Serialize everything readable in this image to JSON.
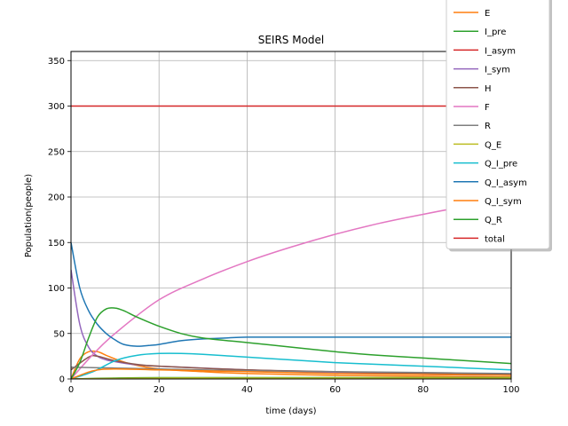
{
  "chart_data": {
    "type": "line",
    "title": "SEIRS Model",
    "xlabel": "time (days)",
    "ylabel": "Population(people)",
    "xlim": [
      0,
      100
    ],
    "ylim": [
      0,
      360
    ],
    "xticks": [
      "0",
      "20",
      "40",
      "60",
      "80",
      "100"
    ],
    "yticks": [
      "0",
      "50",
      "100",
      "150",
      "200",
      "250",
      "300",
      "350"
    ],
    "grid": true,
    "legend_position": "upper-right",
    "series": [
      {
        "name": "E",
        "color": "#ff7f0e",
        "x": [
          0,
          2,
          4,
          6,
          8,
          10,
          14,
          20,
          30,
          40,
          60,
          80,
          100
        ],
        "y": [
          0,
          22,
          30,
          30,
          26,
          22,
          16,
          11,
          8,
          6,
          4,
          3,
          2
        ]
      },
      {
        "name": "I_pre",
        "color": "#2ca02c",
        "x": [
          0,
          10,
          20,
          40,
          60,
          80,
          100
        ],
        "y": [
          0,
          1,
          1.5,
          1.5,
          1.5,
          1.5,
          1.5
        ]
      },
      {
        "name": "I_asym",
        "color": "#d62728",
        "x": [
          0,
          100
        ],
        "y": [
          0,
          0
        ]
      },
      {
        "name": "I_sym",
        "color": "#9467bd",
        "x": [
          0,
          2,
          4,
          6,
          8,
          10,
          14,
          20,
          30,
          40,
          60,
          80,
          100
        ],
        "y": [
          120,
          60,
          35,
          25,
          21,
          19,
          16,
          14,
          12,
          10,
          7,
          5,
          4
        ]
      },
      {
        "name": "H",
        "color": "#8c564b",
        "x": [
          0,
          4,
          6,
          10,
          15,
          20,
          40,
          60,
          80,
          100
        ],
        "y": [
          10,
          24,
          25,
          20,
          16,
          14,
          10,
          8,
          6,
          5
        ]
      },
      {
        "name": "F",
        "color": "#e377c2",
        "x": [
          0,
          5,
          10,
          20,
          30,
          40,
          50,
          60,
          70,
          80,
          90,
          100
        ],
        "y": [
          0,
          27,
          50,
          87,
          110,
          129,
          145,
          159,
          171,
          181,
          190,
          197
        ]
      },
      {
        "name": "R",
        "color": "#7f7f7f",
        "x": [
          0,
          10,
          20,
          40,
          60,
          80,
          100
        ],
        "y": [
          13,
          12,
          11,
          9,
          8,
          7,
          6
        ]
      },
      {
        "name": "Q_E",
        "color": "#bcbd22",
        "x": [
          0,
          20,
          40,
          60,
          80,
          100
        ],
        "y": [
          0,
          1,
          1,
          1,
          1,
          1
        ]
      },
      {
        "name": "Q_I_pre",
        "color": "#17becf",
        "x": [
          0,
          5,
          10,
          15,
          20,
          25,
          30,
          40,
          50,
          60,
          70,
          80,
          90,
          100
        ],
        "y": [
          0,
          8,
          20,
          26,
          28,
          28,
          27,
          24,
          21,
          18,
          16,
          14,
          12,
          10
        ]
      },
      {
        "name": "Q_I_asym",
        "color": "#1f77b4",
        "x": [
          0,
          2,
          4,
          6,
          8,
          10,
          12,
          15,
          18,
          20,
          25,
          30,
          35,
          40,
          50,
          60,
          80,
          100
        ],
        "y": [
          150,
          100,
          75,
          60,
          50,
          43,
          38,
          36,
          37,
          38,
          42,
          44,
          45,
          46,
          46,
          46,
          46,
          46
        ]
      },
      {
        "name": "Q_I_sym",
        "color": "#ff7f0e",
        "x": [
          0,
          5,
          10,
          20,
          40,
          60,
          80,
          100
        ],
        "y": [
          0,
          9,
          11,
          10,
          8,
          6,
          5,
          4
        ]
      },
      {
        "name": "Q_R",
        "color": "#2ca02c",
        "x": [
          0,
          2,
          4,
          6,
          8,
          10,
          12,
          15,
          20,
          25,
          30,
          40,
          50,
          60,
          70,
          80,
          90,
          100
        ],
        "y": [
          0,
          18,
          45,
          68,
          77,
          78,
          75,
          68,
          58,
          50,
          45,
          40,
          35,
          30,
          26,
          23,
          20,
          17
        ]
      },
      {
        "name": "total",
        "color": "#d62728",
        "x": [
          0,
          100
        ],
        "y": [
          300,
          300
        ]
      }
    ]
  }
}
